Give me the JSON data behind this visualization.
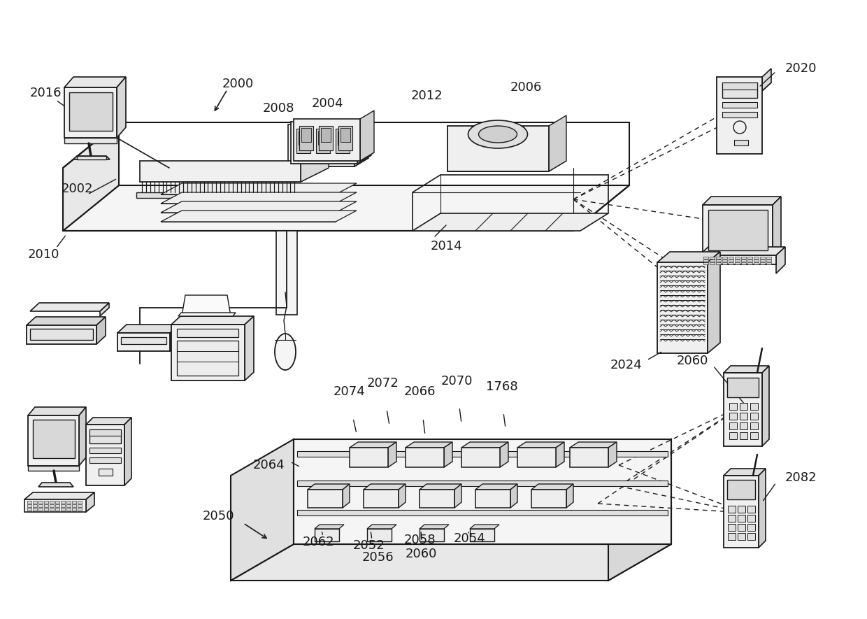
{
  "bg_color": "#ffffff",
  "line_color": "#1a1a1a",
  "label_fontsize": 13
}
